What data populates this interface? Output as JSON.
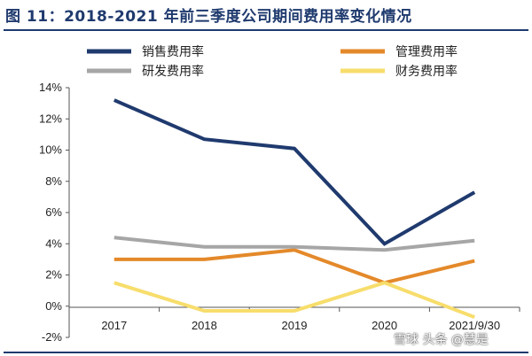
{
  "title": "图 11：2018-2021 年前三季度公司期间费用率变化情况",
  "watermark": "雪球 头条 @慧是",
  "chart_data": {
    "type": "line",
    "categories": [
      "2017",
      "2018",
      "2019",
      "2020",
      "2021/9/30"
    ],
    "ylim": [
      -2,
      14
    ],
    "yticks": [
      -2,
      0,
      2,
      4,
      6,
      8,
      10,
      12,
      14
    ],
    "ytick_labels": [
      "-2%",
      "0%",
      "2%",
      "4%",
      "6%",
      "8%",
      "10%",
      "12%",
      "14%"
    ],
    "grid": false,
    "legend": "top",
    "series": [
      {
        "name": "销售费用率",
        "color": "#1f3a6e",
        "values": [
          13.2,
          10.7,
          10.1,
          4.0,
          7.3
        ]
      },
      {
        "name": "管理费用率",
        "color": "#e4892a",
        "values": [
          3.0,
          3.0,
          3.6,
          1.5,
          2.9
        ]
      },
      {
        "name": "研发费用率",
        "color": "#a6a6a6",
        "values": [
          4.4,
          3.8,
          3.8,
          3.6,
          4.2
        ]
      },
      {
        "name": "财务费用率",
        "color": "#f7dd6b",
        "values": [
          1.5,
          -0.3,
          -0.3,
          1.5,
          -0.7
        ]
      }
    ]
  }
}
